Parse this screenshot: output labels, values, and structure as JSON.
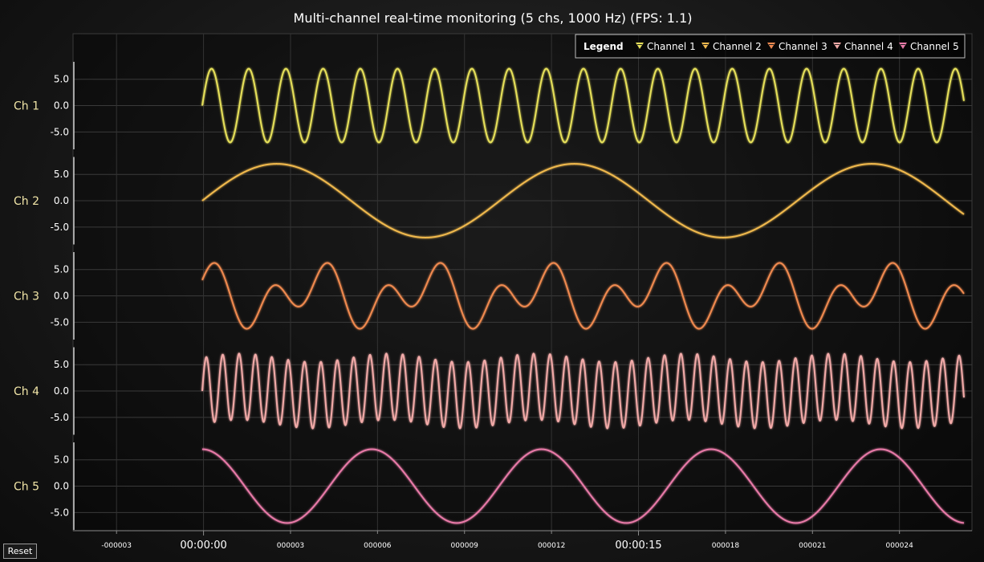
{
  "chart_data": {
    "type": "line",
    "title": "Multi-channel real-time monitoring (5 chs, 1000 Hz) (FPS: 1.1)",
    "legend": {
      "title": "Legend",
      "position": "top-right"
    },
    "x_range": [
      -4.5,
      26.5
    ],
    "x_ticks_minor": [
      {
        "x": -3,
        "label": "-000003"
      },
      {
        "x": 3,
        "label": "000003"
      },
      {
        "x": 6,
        "label": "000006"
      },
      {
        "x": 9,
        "label": "000009"
      },
      {
        "x": 12,
        "label": "000012"
      },
      {
        "x": 18,
        "label": "000018"
      },
      {
        "x": 21,
        "label": "000021"
      },
      {
        "x": 24,
        "label": "000024"
      }
    ],
    "x_ticks_major": [
      {
        "x": 0,
        "label": "00:00:00"
      },
      {
        "x": 15,
        "label": "00:00:15"
      }
    ],
    "data_x_range": [
      0,
      25.6
    ],
    "y_range": [
      -8,
      8
    ],
    "y_ticks": [
      {
        "value": 5,
        "label": "5.0"
      },
      {
        "value": 0,
        "label": "0.0"
      },
      {
        "value": -5,
        "label": "-5.0"
      }
    ],
    "grid": true,
    "series": [
      {
        "name": "Channel 1",
        "axis_label": "Ch 1",
        "color": "#e6e05a",
        "components": [
          {
            "amp": 7,
            "period": 1.25,
            "phase": 0
          }
        ]
      },
      {
        "name": "Channel 2",
        "axis_label": "Ch 2",
        "color": "#f0b94e",
        "components": [
          {
            "amp": 7,
            "period": 10,
            "phase": 0
          }
        ]
      },
      {
        "name": "Channel 3",
        "axis_label": "Ch 3",
        "color": "#f08a50",
        "components": [
          {
            "amp": 4,
            "period": 1.9,
            "phase": 0
          },
          {
            "amp": 3,
            "period": 3.8,
            "phase": 1.57
          }
        ]
      },
      {
        "name": "Channel 4",
        "axis_label": "Ch 4",
        "color": "#f2aaa8",
        "components": [
          {
            "amp": 6.3,
            "period": 0.55,
            "phase": 0
          },
          {
            "amp": 0.8,
            "period": 5,
            "phase": 0
          }
        ]
      },
      {
        "name": "Channel 5",
        "axis_label": "Ch 5",
        "color": "#e87aa8",
        "components": [
          {
            "amp": 7,
            "period": 5.7,
            "phase": 1.57
          }
        ]
      }
    ]
  },
  "controls": {
    "reset_label": "Reset"
  }
}
